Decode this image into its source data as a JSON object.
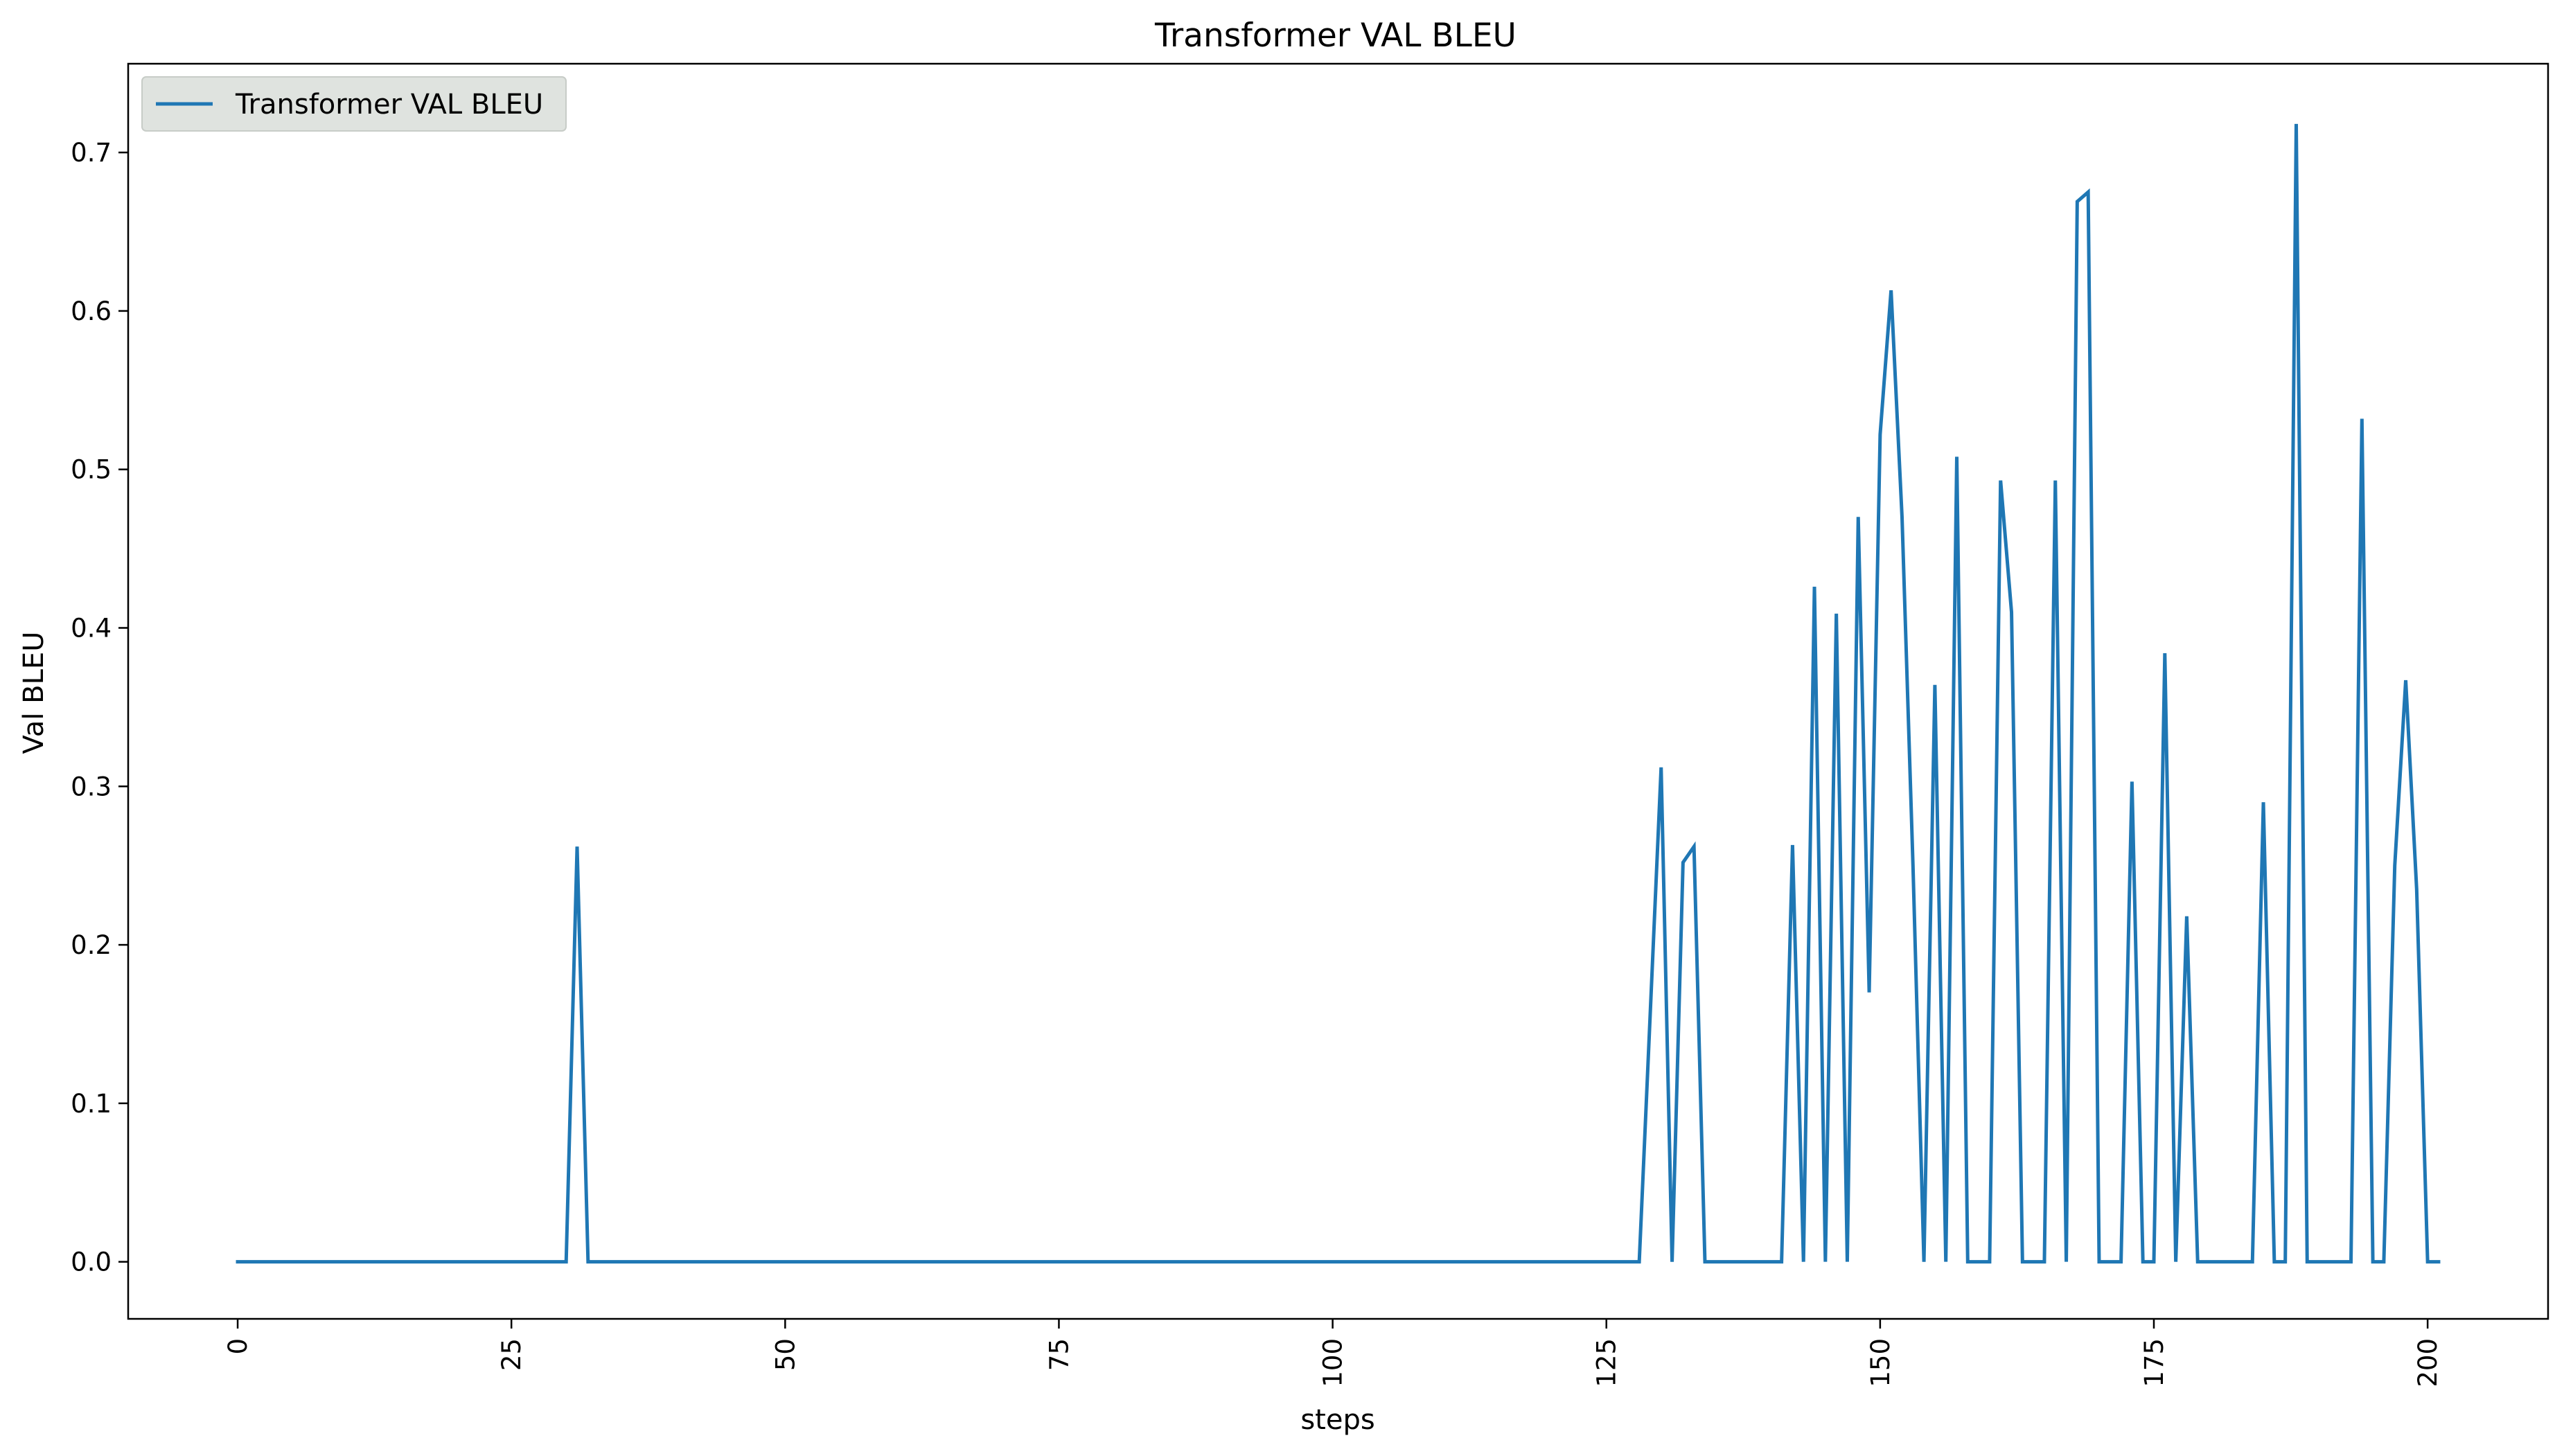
{
  "chart_data": {
    "type": "line",
    "title": "Transformer VAL BLEU",
    "xlabel": "steps",
    "ylabel": "Val BLEU",
    "xlim": [
      -10,
      211
    ],
    "ylim": [
      -0.036,
      0.756
    ],
    "xticks": [
      0,
      25,
      50,
      75,
      100,
      125,
      150,
      175,
      200
    ],
    "yticks": [
      0.0,
      0.1,
      0.2,
      0.3,
      0.4,
      0.5,
      0.6,
      0.7
    ],
    "ytick_labels": [
      "0.0",
      "0.1",
      "0.2",
      "0.3",
      "0.4",
      "0.5",
      "0.6",
      "0.7"
    ],
    "xtick_rotation": "vertical",
    "grid": false,
    "legend": "upper-left",
    "series": [
      {
        "name": "Transformer VAL BLEU",
        "color": "#1f77b4",
        "points": [
          [
            0,
            0
          ],
          [
            30,
            0
          ],
          [
            31,
            0.262
          ],
          [
            32,
            0
          ],
          [
            128,
            0
          ],
          [
            130,
            0.312
          ],
          [
            131,
            0
          ],
          [
            132,
            0.252
          ],
          [
            133,
            0.262
          ],
          [
            134,
            0
          ],
          [
            141,
            0
          ],
          [
            142,
            0.263
          ],
          [
            143,
            0
          ],
          [
            144,
            0.426
          ],
          [
            145,
            0
          ],
          [
            146,
            0.409
          ],
          [
            147,
            0
          ],
          [
            148,
            0.47
          ],
          [
            149,
            0.17
          ],
          [
            150,
            0.522
          ],
          [
            151,
            0.613
          ],
          [
            152,
            0.47
          ],
          [
            153,
            0.25
          ],
          [
            154,
            0
          ],
          [
            155,
            0.364
          ],
          [
            156,
            0
          ],
          [
            157,
            0.508
          ],
          [
            158,
            0
          ],
          [
            160,
            0
          ],
          [
            161,
            0.493
          ],
          [
            162,
            0.41
          ],
          [
            163,
            0
          ],
          [
            165,
            0
          ],
          [
            166,
            0.493
          ],
          [
            167,
            0
          ],
          [
            168,
            0.669
          ],
          [
            169,
            0.675
          ],
          [
            170,
            0
          ],
          [
            172,
            0
          ],
          [
            173,
            0.303
          ],
          [
            174,
            0
          ],
          [
            175,
            0
          ],
          [
            176,
            0.384
          ],
          [
            177,
            0
          ],
          [
            178,
            0.218
          ],
          [
            179,
            0
          ],
          [
            184,
            0
          ],
          [
            185,
            0.29
          ],
          [
            186,
            0
          ],
          [
            187,
            0
          ],
          [
            188,
            0.718
          ],
          [
            189,
            0
          ],
          [
            193,
            0
          ],
          [
            194,
            0.532
          ],
          [
            195,
            0
          ],
          [
            196,
            0
          ],
          [
            197,
            0.25
          ],
          [
            198,
            0.367
          ],
          [
            199,
            0.235
          ],
          [
            200,
            0
          ],
          [
            201,
            0
          ]
        ]
      }
    ]
  }
}
